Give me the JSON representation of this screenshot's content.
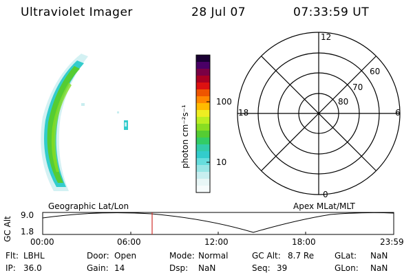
{
  "header": {
    "title": "Ultraviolet Imager",
    "date": "28 Jul 07",
    "time": "07:33:59 UT"
  },
  "colorbar": {
    "label": "photon cm⁻²s⁻¹",
    "ticks": [
      "100",
      "10"
    ]
  },
  "polar": {
    "mlt_labels": [
      "12",
      "18",
      "6",
      "0"
    ],
    "lat_labels": [
      "60",
      "70",
      "80"
    ]
  },
  "timeline": {
    "left_title": "Geographic Lat/Lon",
    "right_title": "Apex  MLat/MLT",
    "y_axis_label": "GC Alt",
    "y_ticks": [
      "9.0",
      "1.8"
    ],
    "x_ticks": [
      "00:00",
      "06:00",
      "12:00",
      "18:00",
      "23:59"
    ],
    "marker_time": "07:33:59"
  },
  "info": {
    "filter_label": "Flt:",
    "filter_value": "LBHL",
    "ip_label": "IP:",
    "ip_value": "36.0",
    "door_label": "Door:",
    "door_value": "Open",
    "gain_label": "Gain:",
    "gain_value": "14",
    "mode_label": "Mode:",
    "mode_value": "Normal",
    "dsp_label": "Dsp:",
    "dsp_value": "NaN",
    "gcalt_label": "GC Alt:",
    "gcalt_value": "8.7 Re",
    "seq_label": "Seq:",
    "seq_value": "39",
    "glat_label": "GLat:",
    "glat_value": "NaN",
    "glon_label": "GLon:",
    "glon_value": "NaN"
  },
  "colors": {
    "marker": "#d0302a",
    "aurora_main": "#55cc33",
    "aurora_edge": "#33cccc"
  }
}
